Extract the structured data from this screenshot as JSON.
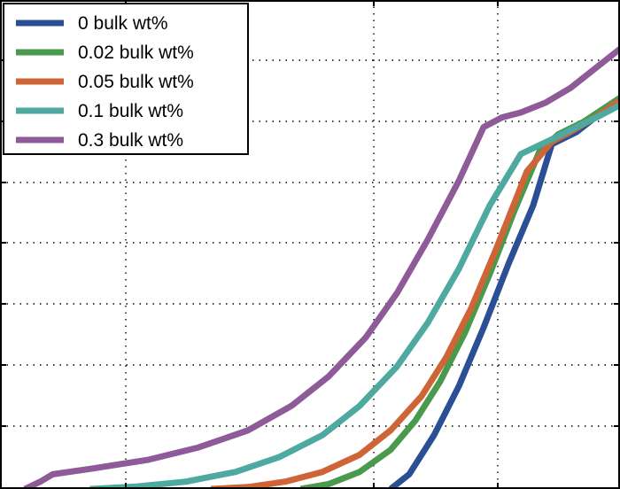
{
  "chart_data": {
    "type": "line",
    "title": "",
    "xlabel": "",
    "ylabel": "",
    "xlim": [
      0,
      1
    ],
    "ylim": [
      0,
      1
    ],
    "grid": true,
    "legend_position": "top-left",
    "series": [
      {
        "name": "0 bulk wt%",
        "color": "#2b4f94",
        "x": [
          0.63,
          0.66,
          0.7,
          0.74,
          0.78,
          0.82,
          0.86,
          0.89,
          0.93,
          0.96,
          1.0
        ],
        "y": [
          0.0,
          0.03,
          0.11,
          0.21,
          0.33,
          0.46,
          0.58,
          0.705,
          0.73,
          0.76,
          0.8
        ]
      },
      {
        "name": "0.02 bulk wt%",
        "color": "#4a9a4e",
        "x": [
          0.485,
          0.53,
          0.58,
          0.63,
          0.67,
          0.71,
          0.75,
          0.79,
          0.83,
          0.87,
          0.9,
          0.94,
          0.97,
          1.0
        ],
        "y": [
          0.0,
          0.01,
          0.035,
          0.08,
          0.14,
          0.22,
          0.32,
          0.44,
          0.57,
          0.69,
          0.725,
          0.75,
          0.775,
          0.8
        ]
      },
      {
        "name": "0.05 bulk wt%",
        "color": "#cf6437",
        "x": [
          0.34,
          0.4,
          0.46,
          0.52,
          0.58,
          0.63,
          0.68,
          0.72,
          0.76,
          0.8,
          0.85,
          0.89,
          0.92,
          0.96,
          1.0
        ],
        "y": [
          0.0,
          0.004,
          0.015,
          0.035,
          0.07,
          0.12,
          0.19,
          0.27,
          0.37,
          0.49,
          0.65,
          0.71,
          0.73,
          0.76,
          0.795
        ]
      },
      {
        "name": "0.1 bulk wt%",
        "color": "#4ea9a0",
        "x": [
          0.145,
          0.22,
          0.3,
          0.38,
          0.45,
          0.52,
          0.58,
          0.64,
          0.69,
          0.74,
          0.79,
          0.84,
          0.89,
          0.93,
          0.97,
          1.0
        ],
        "y": [
          0.0,
          0.005,
          0.015,
          0.035,
          0.065,
          0.11,
          0.17,
          0.25,
          0.34,
          0.45,
          0.58,
          0.685,
          0.715,
          0.74,
          0.765,
          0.785
        ]
      },
      {
        "name": "0.3 bulk wt%",
        "color": "#8e5a98",
        "x": [
          0.04,
          0.065,
          0.085,
          0.15,
          0.24,
          0.32,
          0.4,
          0.47,
          0.53,
          0.59,
          0.64,
          0.69,
          0.74,
          0.78,
          0.81,
          0.84,
          0.88,
          0.92,
          0.96,
          1.0
        ],
        "y": [
          0.0,
          0.015,
          0.03,
          0.042,
          0.06,
          0.085,
          0.12,
          0.17,
          0.23,
          0.31,
          0.4,
          0.51,
          0.63,
          0.74,
          0.76,
          0.77,
          0.79,
          0.82,
          0.86,
          0.9
        ]
      }
    ]
  }
}
